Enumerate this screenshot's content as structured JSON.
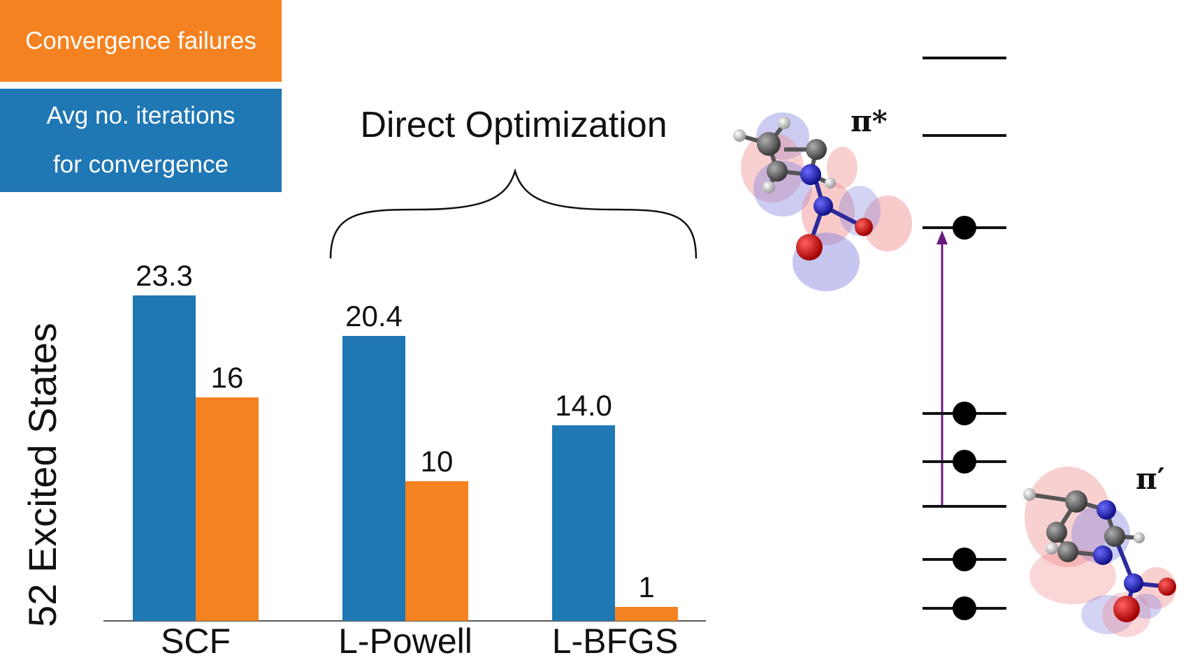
{
  "chart_data": {
    "type": "bar",
    "categories": [
      "SCF",
      "L-Powell",
      "L-BFGS"
    ],
    "series": [
      {
        "name": "Avg no. iterations for convergence",
        "values": [
          23.3,
          20.4,
          14.0
        ],
        "labels": [
          "23.3",
          "20.4",
          "14.0"
        ],
        "color": "#1f77b4"
      },
      {
        "name": "Convergence failures",
        "values": [
          16,
          10,
          1
        ],
        "labels": [
          "16",
          "10",
          "1"
        ],
        "color": "#f58220"
      }
    ],
    "ylabel": "52 Excited States",
    "xlabel": "",
    "ylim": [
      0,
      25.6
    ],
    "grid": false,
    "legend_position": "top-left",
    "annotation": "Direct Optimization"
  },
  "legend": {
    "failures": {
      "label": "Convergence failures",
      "color": "#f58220"
    },
    "iterations": {
      "line1": "Avg no. iterations",
      "line2": "for convergence",
      "color": "#1f77b4"
    }
  },
  "orbital_diagram": {
    "pi_star_label": "π*",
    "pi_prime_label": "π′",
    "levels": [
      {
        "occupied": false
      },
      {
        "occupied": false
      },
      {
        "occupied": true
      },
      {
        "occupied": true
      },
      {
        "occupied": true
      },
      {
        "occupied": false
      },
      {
        "occupied": true
      },
      {
        "occupied": true
      }
    ],
    "excitation_arrow_color": "#6a1b7f"
  }
}
